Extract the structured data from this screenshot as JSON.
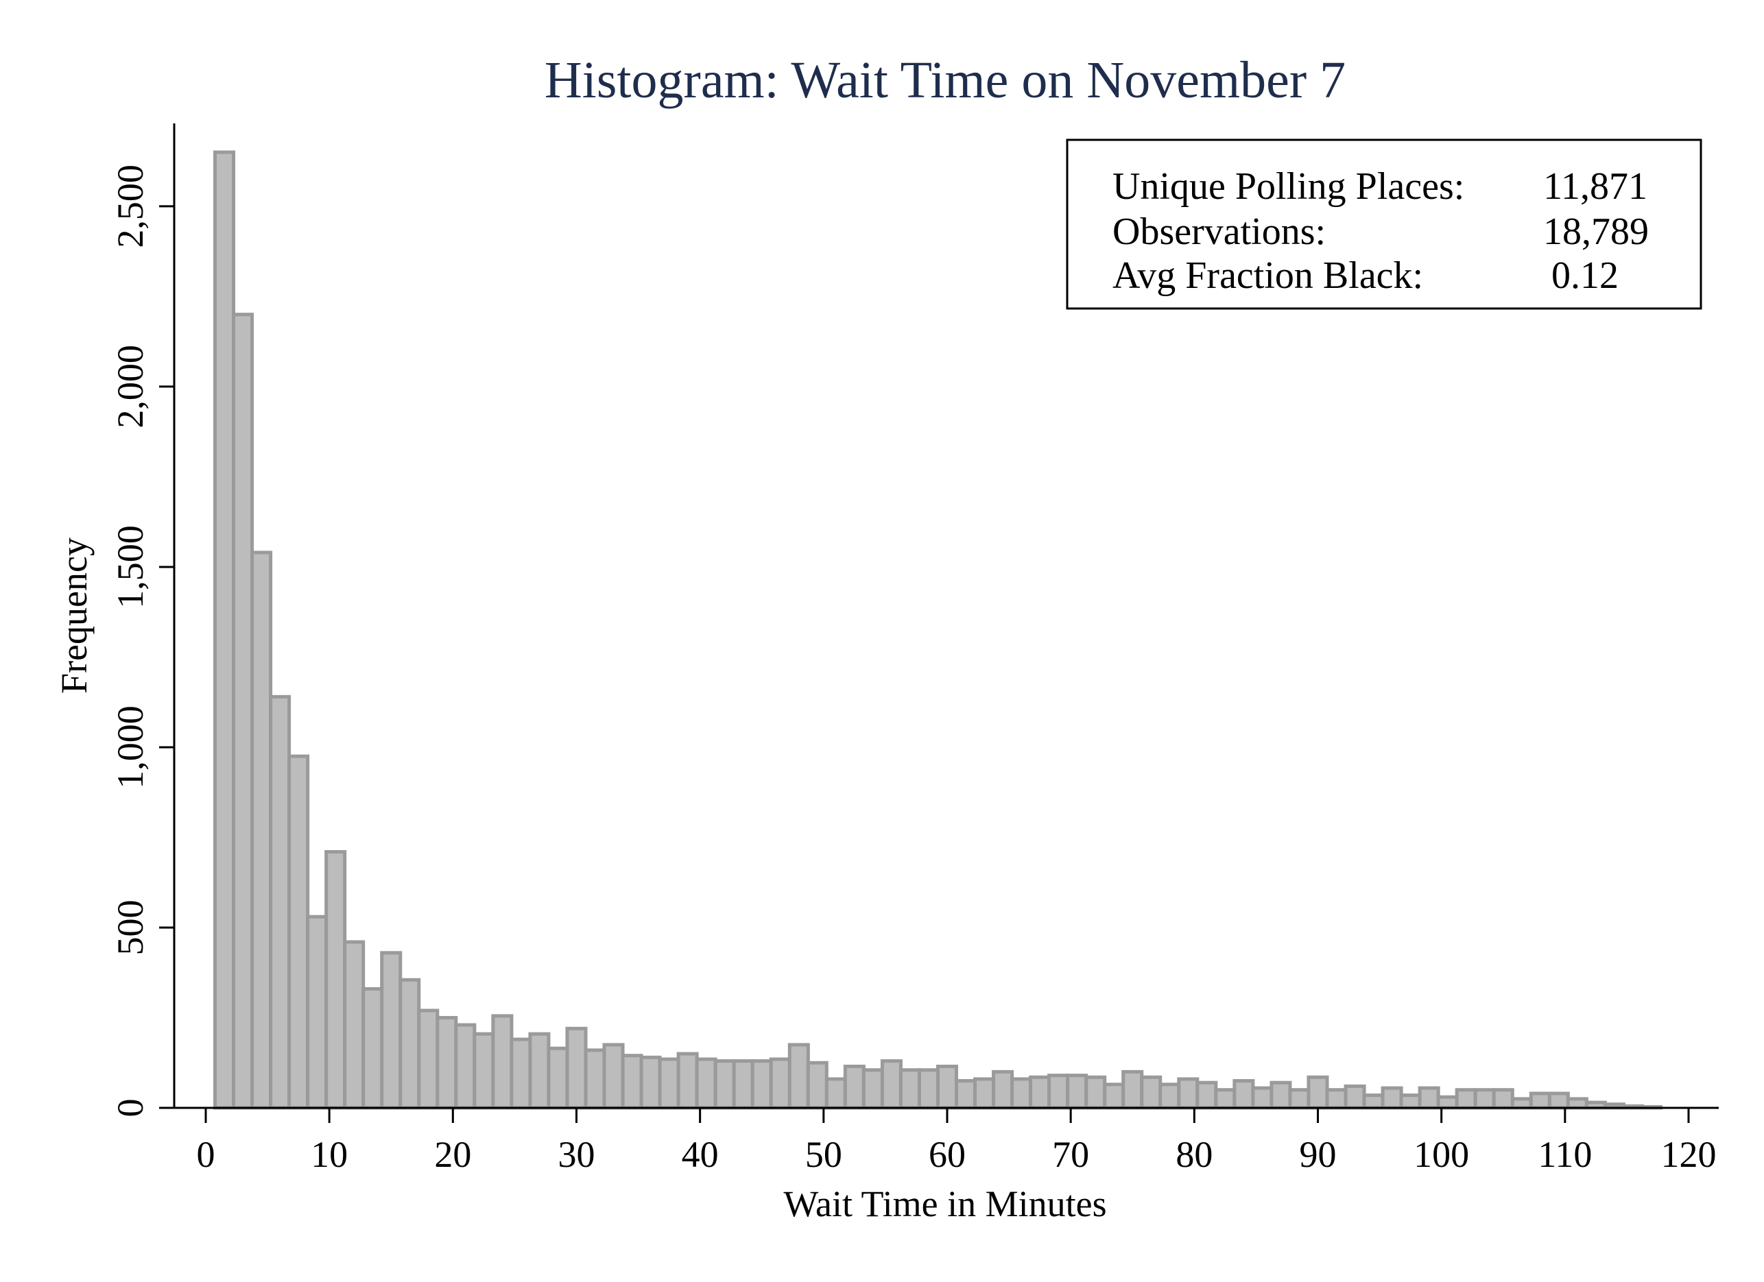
{
  "chart_data": {
    "type": "bar",
    "title": "Histogram: Wait Time on November 7",
    "xlabel": "Wait Time in Minutes",
    "ylabel": "Frequency",
    "xlim": [
      -2,
      122
    ],
    "ylim": [
      0,
      2720
    ],
    "bin_width": 1.5,
    "bin_start": 0.75,
    "x_ticks": [
      0,
      10,
      20,
      30,
      40,
      50,
      60,
      70,
      80,
      90,
      100,
      110,
      120
    ],
    "x_tick_labels": [
      "0",
      "10",
      "20",
      "30",
      "40",
      "50",
      "60",
      "70",
      "80",
      "90",
      "100",
      "110",
      "120"
    ],
    "y_ticks": [
      0,
      500,
      1000,
      1500,
      2000,
      2500
    ],
    "y_tick_labels": [
      "0",
      "500",
      "1,000",
      "1,500",
      "2,000",
      "2,500"
    ],
    "values": [
      2650,
      2200,
      1540,
      1140,
      975,
      530,
      710,
      460,
      330,
      430,
      355,
      270,
      250,
      230,
      205,
      255,
      190,
      205,
      165,
      220,
      160,
      175,
      145,
      140,
      135,
      150,
      135,
      130,
      130,
      130,
      135,
      175,
      125,
      80,
      115,
      105,
      130,
      105,
      105,
      115,
      75,
      80,
      100,
      80,
      85,
      90,
      90,
      85,
      65,
      100,
      85,
      65,
      80,
      70,
      50,
      75,
      55,
      70,
      50,
      85,
      50,
      60,
      35,
      55,
      35,
      55,
      30,
      50,
      50,
      50,
      25,
      40,
      40,
      25,
      15,
      10,
      5,
      3
    ],
    "grid": false,
    "stats_box": {
      "rows": [
        {
          "label": "Unique Polling Places:",
          "value": "11,871"
        },
        {
          "label": "Observations:",
          "value": "18,789"
        },
        {
          "label": "Avg Fraction Black:",
          "value": "0.12"
        }
      ],
      "placement": "top-right"
    }
  }
}
